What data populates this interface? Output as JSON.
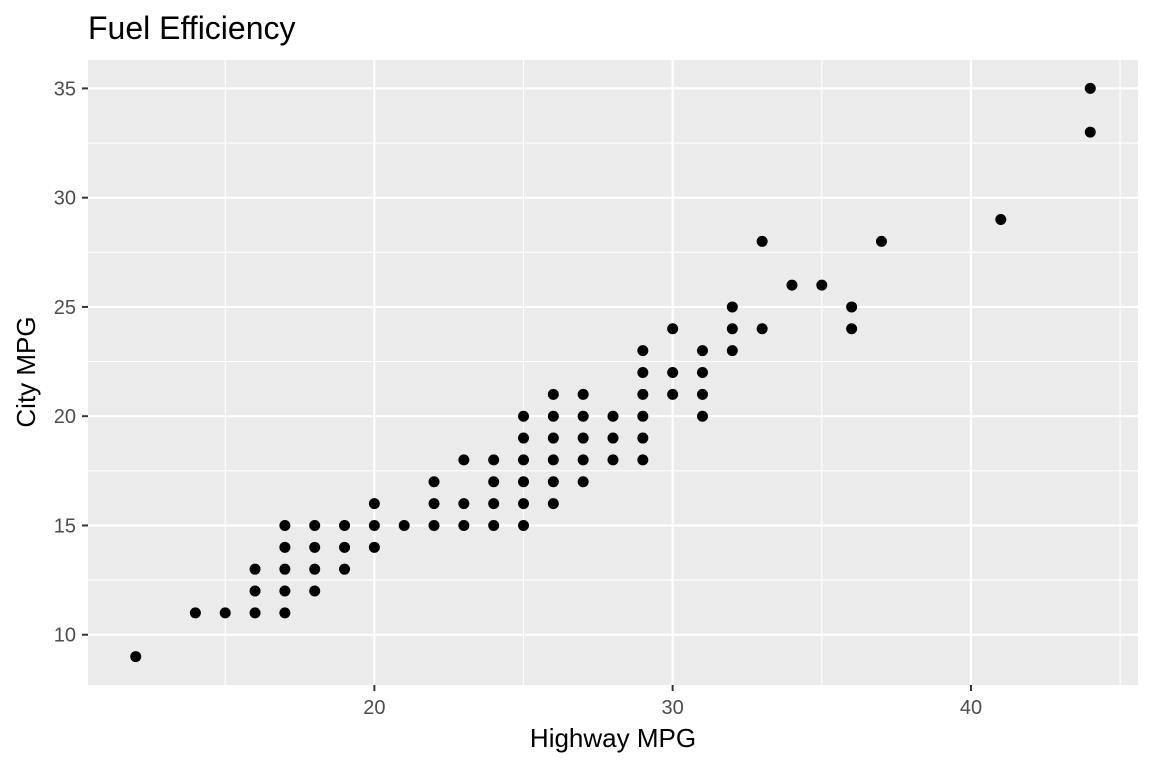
{
  "chart_data": {
    "type": "scatter",
    "title": "Fuel Efficiency",
    "xlabel": "Highway MPG",
    "ylabel": "City MPG",
    "xlim": [
      10.4,
      45.6
    ],
    "ylim": [
      7.7,
      36.3
    ],
    "x_ticks": [
      20,
      30,
      40
    ],
    "y_ticks": [
      10,
      15,
      20,
      25,
      30,
      35
    ],
    "grid": true,
    "legend": "none",
    "colors": {
      "panel": "#ebebeb",
      "grid": "#ffffff",
      "point": "#000000",
      "tick_text": "#4d4d4d"
    },
    "points": [
      [
        12,
        9
      ],
      [
        14,
        11
      ],
      [
        15,
        11
      ],
      [
        16,
        11
      ],
      [
        17,
        11
      ],
      [
        16,
        12
      ],
      [
        17,
        12
      ],
      [
        18,
        12
      ],
      [
        16,
        13
      ],
      [
        17,
        13
      ],
      [
        18,
        13
      ],
      [
        19,
        13
      ],
      [
        17,
        14
      ],
      [
        18,
        14
      ],
      [
        19,
        14
      ],
      [
        20,
        14
      ],
      [
        17,
        15
      ],
      [
        18,
        15
      ],
      [
        19,
        15
      ],
      [
        20,
        15
      ],
      [
        21,
        15
      ],
      [
        22,
        15
      ],
      [
        23,
        15
      ],
      [
        24,
        15
      ],
      [
        25,
        15
      ],
      [
        20,
        16
      ],
      [
        22,
        16
      ],
      [
        23,
        16
      ],
      [
        24,
        16
      ],
      [
        25,
        16
      ],
      [
        26,
        16
      ],
      [
        22,
        17
      ],
      [
        24,
        17
      ],
      [
        25,
        17
      ],
      [
        26,
        17
      ],
      [
        27,
        17
      ],
      [
        23,
        18
      ],
      [
        24,
        18
      ],
      [
        25,
        18
      ],
      [
        26,
        18
      ],
      [
        27,
        18
      ],
      [
        28,
        18
      ],
      [
        29,
        18
      ],
      [
        25,
        19
      ],
      [
        26,
        19
      ],
      [
        27,
        19
      ],
      [
        28,
        19
      ],
      [
        29,
        19
      ],
      [
        25,
        20
      ],
      [
        26,
        20
      ],
      [
        27,
        20
      ],
      [
        28,
        20
      ],
      [
        29,
        20
      ],
      [
        31,
        20
      ],
      [
        26,
        21
      ],
      [
        27,
        21
      ],
      [
        29,
        21
      ],
      [
        30,
        21
      ],
      [
        31,
        21
      ],
      [
        29,
        22
      ],
      [
        30,
        22
      ],
      [
        31,
        22
      ],
      [
        29,
        23
      ],
      [
        31,
        23
      ],
      [
        32,
        23
      ],
      [
        30,
        24
      ],
      [
        32,
        24
      ],
      [
        33,
        24
      ],
      [
        36,
        24
      ],
      [
        32,
        25
      ],
      [
        36,
        25
      ],
      [
        34,
        26
      ],
      [
        35,
        26
      ],
      [
        33,
        28
      ],
      [
        37,
        28
      ],
      [
        41,
        29
      ],
      [
        44,
        33
      ],
      [
        44,
        35
      ]
    ]
  }
}
